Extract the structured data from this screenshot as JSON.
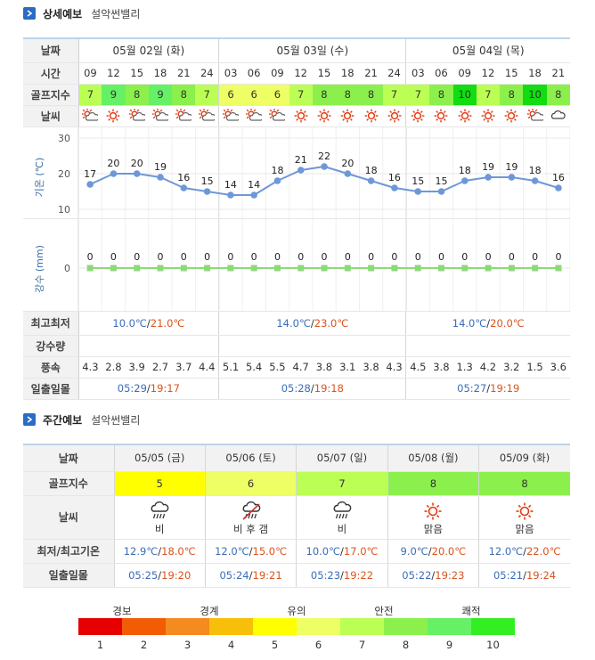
{
  "detail": {
    "title": "상세예보",
    "location": "설악썬밸리",
    "labels": {
      "date": "날짜",
      "time": "시간",
      "golf": "골프지수",
      "weather": "날씨",
      "temp_axis": "기온 (℃)",
      "rain_axis": "강수 (mm)",
      "minmax": "최고최저",
      "precip": "강수량",
      "wind": "풍속",
      "sun": "일출일몰"
    },
    "days": [
      {
        "date": "05월 02일 (화)",
        "min": "10.0℃",
        "max": "21.0℃",
        "sunrise": "05:29",
        "sunset": "19:17"
      },
      {
        "date": "05월 03일 (수)",
        "min": "14.0℃",
        "max": "23.0℃",
        "sunrise": "05:28",
        "sunset": "19:18"
      },
      {
        "date": "05월 04일 (목)",
        "min": "14.0℃",
        "max": "20.0℃",
        "sunrise": "05:27",
        "sunset": "19:19"
      }
    ],
    "hours": [
      "09",
      "12",
      "15",
      "18",
      "21",
      "24",
      "03",
      "06",
      "09",
      "12",
      "15",
      "18",
      "21",
      "24",
      "03",
      "06",
      "09",
      "12",
      "15",
      "18",
      "21"
    ],
    "golf_index": [
      7,
      9,
      8,
      9,
      8,
      7,
      6,
      6,
      6,
      7,
      8,
      8,
      8,
      7,
      7,
      8,
      10,
      7,
      8,
      10,
      8
    ],
    "weather_icons": [
      "partly-cloudy-icon",
      "sun-icon",
      "partly-cloudy-icon",
      "partly-cloudy-icon",
      "partly-cloudy-icon",
      "partly-cloudy-icon",
      "partly-cloudy-icon",
      "partly-cloudy-icon",
      "partly-cloudy-icon",
      "sun-icon",
      "sun-icon",
      "sun-icon",
      "sun-icon",
      "sun-icon",
      "sun-icon",
      "sun-icon",
      "sun-icon",
      "sun-icon",
      "sun-icon",
      "partly-cloudy-icon",
      "cloud-icon"
    ],
    "wind": [
      "4.3",
      "2.8",
      "3.9",
      "2.7",
      "3.7",
      "4.4",
      "5.1",
      "5.4",
      "5.5",
      "4.7",
      "3.8",
      "3.1",
      "3.8",
      "4.3",
      "4.5",
      "3.8",
      "1.3",
      "4.2",
      "3.2",
      "1.5",
      "3.6"
    ]
  },
  "chart_data": [
    {
      "type": "line",
      "x": [
        "09",
        "12",
        "15",
        "18",
        "21",
        "24",
        "03",
        "06",
        "09",
        "12",
        "15",
        "18",
        "21",
        "24",
        "03",
        "06",
        "09",
        "12",
        "15",
        "18",
        "21"
      ],
      "series": [
        {
          "values": [
            17,
            20,
            20,
            19,
            16,
            15,
            14,
            14,
            18,
            21,
            22,
            20,
            18,
            16,
            15,
            15,
            18,
            19,
            19,
            18,
            16
          ]
        }
      ],
      "ylabel": "기온 (℃)",
      "yticks": [
        10,
        20,
        30
      ],
      "ylim": [
        10,
        30
      ],
      "grid": true
    },
    {
      "type": "line",
      "x": [
        "09",
        "12",
        "15",
        "18",
        "21",
        "24",
        "03",
        "06",
        "09",
        "12",
        "15",
        "18",
        "21",
        "24",
        "03",
        "06",
        "09",
        "12",
        "15",
        "18",
        "21"
      ],
      "series": [
        {
          "values": [
            0,
            0,
            0,
            0,
            0,
            0,
            0,
            0,
            0,
            0,
            0,
            0,
            0,
            0,
            0,
            0,
            0,
            0,
            0,
            0,
            0
          ]
        }
      ],
      "ylabel": "강수 (mm)",
      "yticks": [
        0
      ],
      "grid": true
    }
  ],
  "weekly": {
    "title": "주간예보",
    "location": "설악썬밸리",
    "labels": {
      "date": "날짜",
      "golf": "골프지수",
      "weather": "날씨",
      "temp": "최저/최고기온",
      "sun": "일출일몰"
    },
    "days": [
      {
        "date": "05/05 (금)",
        "golf": "5",
        "weather": "비",
        "icon": "rain-cloud-icon",
        "min": "12.9℃",
        "max": "18.0℃",
        "sunrise": "05:25",
        "sunset": "19:20"
      },
      {
        "date": "05/06 (토)",
        "golf": "6",
        "weather": "비 후 갬",
        "icon": "rain-then-clear-icon",
        "min": "12.0℃",
        "max": "15.0℃",
        "sunrise": "05:24",
        "sunset": "19:21"
      },
      {
        "date": "05/07 (일)",
        "golf": "7",
        "weather": "비",
        "icon": "rain-cloud-icon",
        "min": "10.0℃",
        "max": "17.0℃",
        "sunrise": "05:23",
        "sunset": "19:22"
      },
      {
        "date": "05/08 (월)",
        "golf": "8",
        "weather": "맑음",
        "icon": "sun-icon",
        "min": "9.0℃",
        "max": "20.0℃",
        "sunrise": "05:22",
        "sunset": "19:23"
      },
      {
        "date": "05/09 (화)",
        "golf": "8",
        "weather": "맑음",
        "icon": "sun-icon",
        "min": "12.0℃",
        "max": "22.0℃",
        "sunrise": "05:21",
        "sunset": "19:24"
      }
    ]
  },
  "legend": {
    "labels": [
      "경보",
      "경계",
      "유의",
      "안전",
      "쾌적"
    ],
    "numbers": [
      "1",
      "2",
      "3",
      "4",
      "5",
      "6",
      "7",
      "8",
      "9",
      "10"
    ],
    "colors": [
      "#e60000",
      "#f25c05",
      "#f58a1f",
      "#f7bf0a",
      "#ffff00",
      "#eeff66",
      "#bbff55",
      "#8cf04c",
      "#66f066",
      "#33ee22"
    ]
  }
}
